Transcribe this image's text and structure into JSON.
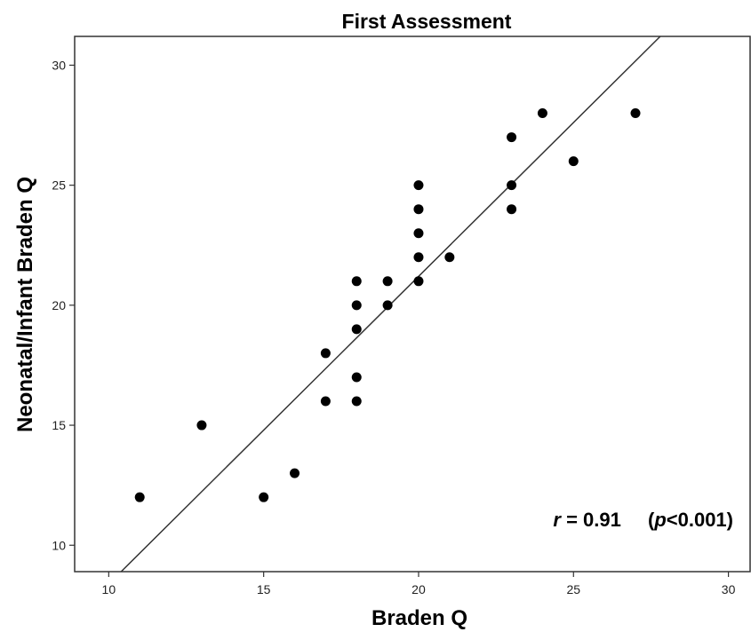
{
  "chart_data": {
    "type": "scatter",
    "title": "First Assessment",
    "xlabel": "Braden Q",
    "ylabel": "Neonatal/Infant Braden Q",
    "xlim": [
      8.9,
      30.7
    ],
    "ylim": [
      8.9,
      31.2
    ],
    "xticks": [
      "10",
      "15",
      "20",
      "25",
      "30"
    ],
    "yticks": [
      "10",
      "15",
      "20",
      "25",
      "30"
    ],
    "grid": false,
    "points": [
      {
        "x": 11,
        "y": 12
      },
      {
        "x": 13,
        "y": 15
      },
      {
        "x": 15,
        "y": 12
      },
      {
        "x": 16,
        "y": 13
      },
      {
        "x": 17,
        "y": 16
      },
      {
        "x": 17,
        "y": 18
      },
      {
        "x": 18,
        "y": 16
      },
      {
        "x": 18,
        "y": 17
      },
      {
        "x": 18,
        "y": 19
      },
      {
        "x": 18,
        "y": 20
      },
      {
        "x": 18,
        "y": 21
      },
      {
        "x": 19,
        "y": 20
      },
      {
        "x": 19,
        "y": 21
      },
      {
        "x": 20,
        "y": 21
      },
      {
        "x": 20,
        "y": 22
      },
      {
        "x": 20,
        "y": 23
      },
      {
        "x": 20,
        "y": 24
      },
      {
        "x": 20,
        "y": 25
      },
      {
        "x": 21,
        "y": 22
      },
      {
        "x": 23,
        "y": 24
      },
      {
        "x": 23,
        "y": 25
      },
      {
        "x": 23,
        "y": 27
      },
      {
        "x": 24,
        "y": 28
      },
      {
        "x": 25,
        "y": 26
      },
      {
        "x": 27,
        "y": 28
      }
    ],
    "fit_line": {
      "x": [
        10.4,
        27.8
      ],
      "y": [
        8.9,
        31.2
      ]
    },
    "annotation": {
      "r_symbol": "r",
      "r_value": "= 0.91",
      "p_open": "(",
      "p_symbol": "p",
      "p_value": "<0.001)"
    },
    "colors": {
      "points": "#000000",
      "line": "#333333",
      "frame": "#333333"
    }
  }
}
